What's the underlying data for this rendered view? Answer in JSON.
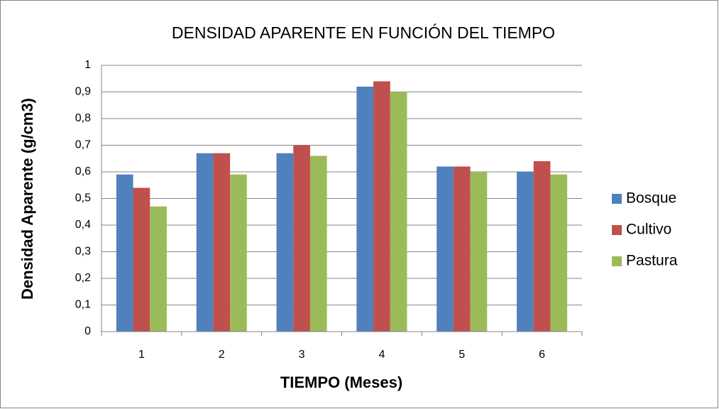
{
  "chart_data": {
    "type": "bar",
    "title": "DENSIDAD APARENTE EN FUNCIÓN DEL TIEMPO",
    "x_label": "TIEMPO (Meses)",
    "y_label": "Densidad  Aparente (g/cm3)",
    "categories": [
      "1",
      "2",
      "3",
      "4",
      "5",
      "6"
    ],
    "series": [
      {
        "name": "Bosque",
        "color": "#4f81bd",
        "values": [
          0.59,
          0.67,
          0.67,
          0.92,
          0.62,
          0.6
        ]
      },
      {
        "name": "Cultivo",
        "color": "#c0504d",
        "values": [
          0.54,
          0.67,
          0.7,
          0.94,
          0.62,
          0.64
        ]
      },
      {
        "name": "Pastura",
        "color": "#9bbb59",
        "values": [
          0.47,
          0.59,
          0.66,
          0.9,
          0.6,
          0.59
        ]
      }
    ],
    "ylim": [
      0,
      1
    ],
    "yticks": [
      0,
      {
        "value": 0.1,
        "label": "0,1"
      },
      {
        "value": 0.2,
        "label": "0,2"
      },
      {
        "value": 0.3,
        "label": "0,3"
      },
      {
        "value": 0.4,
        "label": "0,4"
      },
      {
        "value": 0.5,
        "label": "0,5"
      },
      {
        "value": 0.6,
        "label": "0,6"
      },
      {
        "value": 0.7,
        "label": "0,7"
      },
      {
        "value": 0.8,
        "label": "0,8"
      },
      {
        "value": 0.9,
        "label": "0,9"
      },
      1
    ],
    "grid": true,
    "legend": "right"
  }
}
